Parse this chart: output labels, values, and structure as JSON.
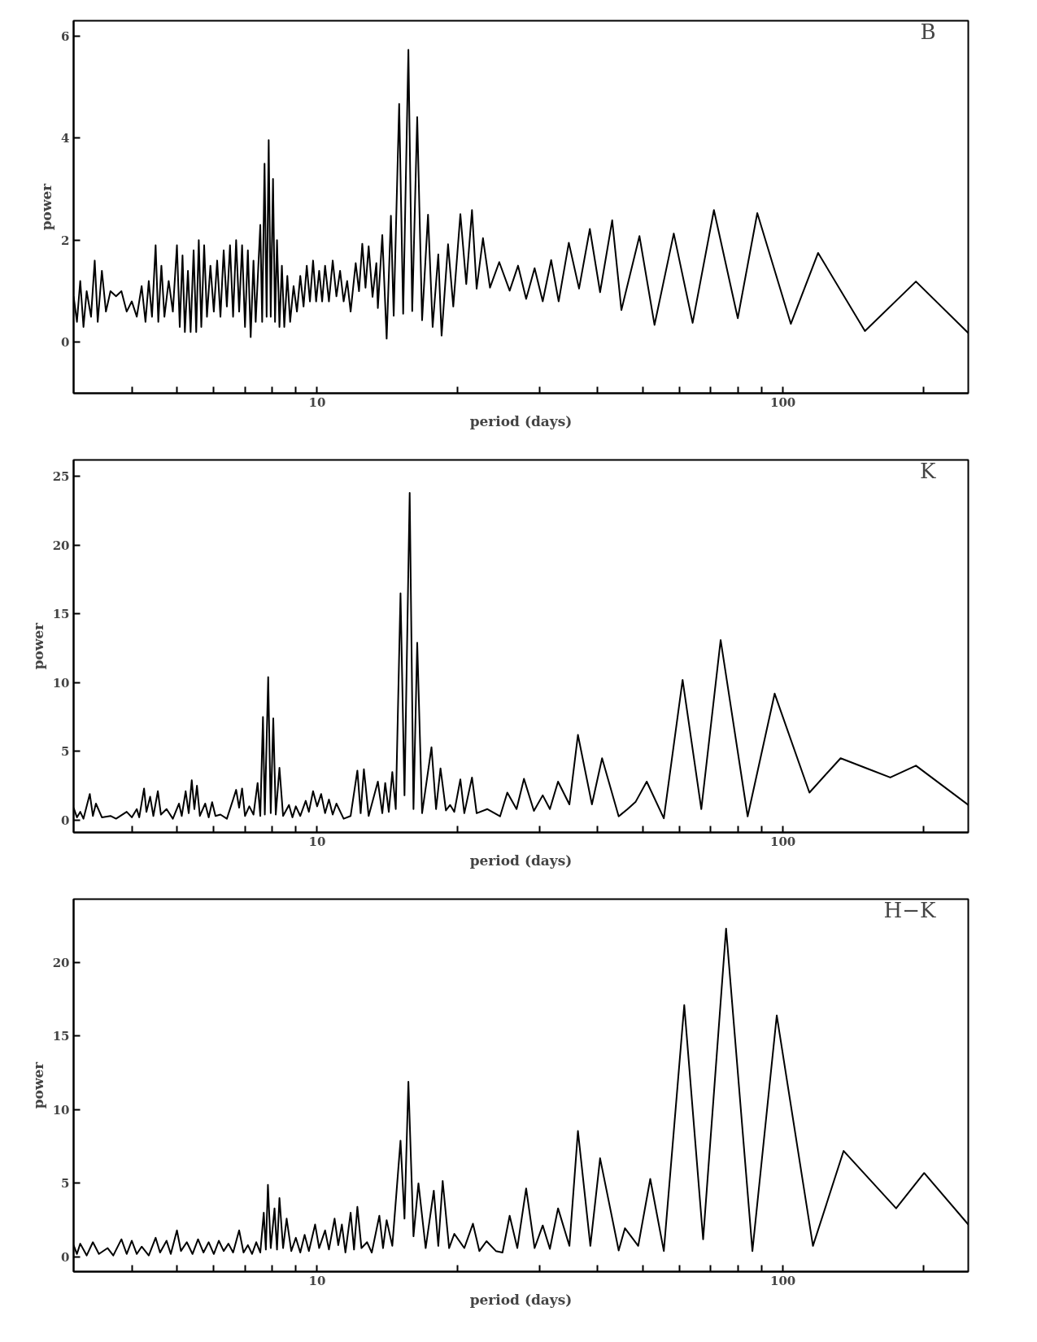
{
  "chart_data": [
    {
      "type": "line",
      "color": "#000000",
      "xlabel": "period (days)",
      "ylabel": "power",
      "annotations": [
        "B"
      ],
      "log": "x",
      "xlim": [
        3,
        250
      ],
      "ylim": [
        -1,
        6.3
      ],
      "yticks": [
        0,
        2,
        4,
        6
      ],
      "xticks": [
        {
          "value": 4,
          "label": null
        },
        {
          "value": 5,
          "label": null
        },
        {
          "value": 6,
          "label": null
        },
        {
          "value": 7,
          "label": null
        },
        {
          "value": 8,
          "label": null
        },
        {
          "value": 9,
          "label": null
        },
        10,
        {
          "value": 20,
          "label": null
        },
        {
          "value": 30,
          "label": null
        },
        {
          "value": 40,
          "label": null
        },
        {
          "value": 50,
          "label": null
        },
        {
          "value": 60,
          "label": null
        },
        {
          "value": 70,
          "label": null
        },
        {
          "value": 80,
          "label": null
        },
        {
          "value": 90,
          "label": null
        },
        100,
        {
          "value": 200,
          "label": null
        }
      ],
      "x": [
        3.0,
        3.05,
        3.1,
        3.15,
        3.2,
        3.27,
        3.33,
        3.38,
        3.45,
        3.52,
        3.6,
        3.7,
        3.8,
        3.9,
        4.0,
        4.1,
        4.2,
        4.28,
        4.35,
        4.42,
        4.5,
        4.56,
        4.63,
        4.7,
        4.8,
        4.9,
        5.0,
        5.07,
        5.14,
        5.2,
        5.28,
        5.35,
        5.43,
        5.5,
        5.57,
        5.64,
        5.72,
        5.8,
        5.9,
        6.0,
        6.1,
        6.2,
        6.3,
        6.4,
        6.5,
        6.6,
        6.7,
        6.8,
        6.9,
        7.0,
        7.1,
        7.2,
        7.3,
        7.38,
        7.55,
        7.62,
        7.71,
        7.79,
        7.87,
        7.95,
        8.04,
        8.12,
        8.2,
        8.3,
        8.4,
        8.5,
        8.63,
        8.75,
        8.9,
        9.05,
        9.2,
        9.35,
        9.5,
        9.65,
        9.8,
        9.95,
        10.1,
        10.25,
        10.4,
        10.6,
        10.8,
        11.0,
        11.2,
        11.4,
        11.6,
        11.8,
        12.1,
        12.3,
        12.5,
        12.7,
        12.9,
        13.15,
        13.4,
        13.5,
        13.8,
        14.1,
        14.4,
        14.6,
        15.0,
        15.3,
        15.7,
        16.0,
        16.4,
        16.8,
        17.3,
        17.7,
        18.2,
        18.5,
        19.1,
        19.6,
        20.3,
        20.9,
        21.5,
        22.0,
        22.7,
        23.5,
        24.6,
        25.9,
        27.0,
        28.1,
        29.3,
        30.5,
        31.8,
        33.0,
        34.7,
        36.5,
        38.5,
        40.5,
        43.0,
        45,
        49.2,
        53,
        58.3,
        64,
        71.1,
        80,
        88.1,
        104,
        119,
        150,
        193,
        250
      ],
      "values": [
        0.9,
        0.4,
        1.2,
        0.3,
        1.0,
        0.5,
        1.6,
        0.4,
        1.4,
        0.6,
        1.0,
        0.9,
        1.0,
        0.6,
        0.8,
        0.5,
        1.1,
        0.4,
        1.2,
        0.5,
        1.9,
        0.4,
        1.5,
        0.5,
        1.2,
        0.6,
        1.9,
        0.3,
        1.7,
        0.2,
        1.4,
        0.2,
        1.8,
        0.2,
        2.0,
        0.3,
        1.9,
        0.5,
        1.5,
        0.6,
        1.6,
        0.5,
        1.8,
        0.7,
        1.9,
        0.5,
        2.0,
        0.6,
        1.9,
        0.3,
        1.8,
        0.1,
        1.6,
        0.4,
        2.3,
        0.4,
        3.5,
        0.5,
        3.96,
        0.5,
        3.2,
        0.4,
        2.0,
        0.3,
        1.5,
        0.3,
        1.3,
        0.4,
        1.1,
        0.6,
        1.3,
        0.7,
        1.5,
        0.8,
        1.6,
        0.8,
        1.4,
        0.8,
        1.5,
        0.8,
        1.6,
        0.9,
        1.4,
        0.8,
        1.2,
        0.6,
        1.55,
        1.0,
        1.93,
        1.07,
        1.88,
        0.89,
        1.55,
        0.67,
        2.1,
        0.07,
        2.48,
        0.52,
        4.67,
        0.56,
        5.73,
        0.61,
        4.41,
        0.43,
        2.5,
        0.3,
        1.72,
        0.13,
        1.92,
        0.7,
        2.51,
        1.14,
        2.59,
        1.05,
        2.04,
        1.07,
        1.57,
        1.01,
        1.5,
        0.85,
        1.45,
        0.8,
        1.61,
        0.8,
        1.95,
        1.05,
        2.22,
        0.98,
        2.39,
        0.63,
        2.08,
        0.34,
        2.13,
        0.38,
        2.59,
        0.47,
        2.53,
        0.36,
        1.75,
        0.22,
        1.19,
        0.18
      ]
    },
    {
      "type": "line",
      "color": "#000000",
      "xlabel": "period (days)",
      "ylabel": "power",
      "annotations": [
        "K"
      ],
      "log": "x",
      "xlim": [
        3,
        250
      ],
      "ylim": [
        -0.9,
        26.2
      ],
      "yticks": [
        0,
        5,
        10,
        15,
        20,
        25
      ],
      "xticks": [
        {
          "value": 4,
          "label": null
        },
        {
          "value": 5,
          "label": null
        },
        {
          "value": 6,
          "label": null
        },
        {
          "value": 7,
          "label": null
        },
        {
          "value": 8,
          "label": null
        },
        {
          "value": 9,
          "label": null
        },
        10,
        {
          "value": 20,
          "label": null
        },
        {
          "value": 30,
          "label": null
        },
        {
          "value": 40,
          "label": null
        },
        {
          "value": 50,
          "label": null
        },
        {
          "value": 60,
          "label": null
        },
        {
          "value": 70,
          "label": null
        },
        {
          "value": 80,
          "label": null
        },
        {
          "value": 90,
          "label": null
        },
        100,
        {
          "value": 200,
          "label": null
        }
      ],
      "x": [
        3.0,
        3.05,
        3.1,
        3.15,
        3.25,
        3.3,
        3.35,
        3.45,
        3.6,
        3.7,
        3.9,
        4.0,
        4.1,
        4.15,
        4.25,
        4.3,
        4.38,
        4.45,
        4.55,
        4.62,
        4.75,
        4.9,
        5.05,
        5.12,
        5.22,
        5.3,
        5.38,
        5.45,
        5.52,
        5.6,
        5.75,
        5.85,
        5.95,
        6.05,
        6.2,
        6.4,
        6.6,
        6.7,
        6.8,
        6.9,
        7.0,
        7.15,
        7.3,
        7.45,
        7.55,
        7.65,
        7.72,
        7.85,
        7.95,
        8.05,
        8.15,
        8.3,
        8.45,
        8.7,
        8.85,
        9.0,
        9.2,
        9.45,
        9.6,
        9.8,
        10.0,
        10.2,
        10.4,
        10.6,
        10.8,
        11.0,
        11.4,
        11.8,
        12.2,
        12.4,
        12.6,
        12.9,
        13.5,
        13.8,
        14.0,
        14.25,
        14.5,
        14.75,
        15.1,
        15.4,
        15.8,
        16.1,
        16.4,
        16.8,
        17.6,
        18.0,
        18.4,
        18.9,
        19.3,
        19.7,
        20.3,
        20.7,
        21.5,
        22.0,
        23.2,
        24.7,
        25.6,
        26.8,
        27.8,
        29.2,
        30.5,
        31.6,
        32.9,
        34.8,
        36.3,
        38.9,
        40.9,
        44.4,
        46.4,
        48.3,
        51,
        55.5,
        60.9,
        66.8,
        73.5,
        84,
        96,
        114,
        133,
        153,
        170,
        193,
        250
      ],
      "values": [
        0.9,
        0.2,
        0.6,
        0.1,
        1.9,
        0.3,
        1.2,
        0.2,
        0.3,
        0.1,
        0.6,
        0.2,
        0.8,
        0.2,
        2.3,
        0.6,
        1.7,
        0.3,
        2.1,
        0.4,
        0.8,
        0.1,
        1.2,
        0.3,
        2.1,
        0.5,
        2.9,
        0.8,
        2.5,
        0.3,
        1.2,
        0.2,
        1.3,
        0.3,
        0.4,
        0.1,
        1.5,
        2.2,
        0.9,
        2.3,
        0.3,
        1.0,
        0.4,
        2.7,
        0.3,
        7.5,
        0.4,
        10.4,
        0.5,
        7.4,
        0.4,
        3.8,
        0.3,
        1.1,
        0.2,
        1.0,
        0.3,
        1.4,
        0.6,
        2.1,
        1.0,
        1.9,
        0.5,
        1.5,
        0.4,
        1.2,
        0.1,
        0.3,
        3.6,
        0.5,
        3.7,
        0.3,
        2.8,
        0.5,
        2.7,
        0.6,
        3.5,
        0.8,
        16.5,
        1.8,
        23.8,
        0.8,
        12.9,
        0.5,
        5.3,
        0.8,
        3.76,
        0.7,
        1.1,
        0.6,
        2.96,
        0.5,
        3.1,
        0.5,
        0.8,
        0.27,
        2.0,
        0.8,
        3.0,
        0.67,
        1.8,
        0.8,
        2.8,
        1.14,
        6.2,
        1.14,
        4.5,
        0.27,
        0.8,
        1.34,
        2.8,
        0.13,
        10.2,
        0.8,
        13.1,
        0.27,
        9.2,
        2.0,
        4.5,
        3.7,
        3.1,
        3.96,
        1.1
      ]
    },
    {
      "type": "line",
      "color": "#000000",
      "xlabel": "period (days)",
      "ylabel": "power",
      "annotations": [
        "H−K"
      ],
      "log": "x",
      "xlim": [
        3,
        250
      ],
      "ylim": [
        -1.0,
        24.3
      ],
      "yticks": [
        0,
        5,
        10,
        15,
        20
      ],
      "xticks": [
        {
          "value": 4,
          "label": null
        },
        {
          "value": 5,
          "label": null
        },
        {
          "value": 6,
          "label": null
        },
        {
          "value": 7,
          "label": null
        },
        {
          "value": 8,
          "label": null
        },
        {
          "value": 9,
          "label": null
        },
        10,
        {
          "value": 20,
          "label": null
        },
        {
          "value": 30,
          "label": null
        },
        {
          "value": 40,
          "label": null
        },
        {
          "value": 50,
          "label": null
        },
        {
          "value": 60,
          "label": null
        },
        {
          "value": 70,
          "label": null
        },
        {
          "value": 80,
          "label": null
        },
        {
          "value": 90,
          "label": null
        },
        100,
        {
          "value": 200,
          "label": null
        }
      ],
      "x": [
        3.0,
        3.05,
        3.1,
        3.2,
        3.3,
        3.4,
        3.55,
        3.65,
        3.8,
        3.9,
        4.0,
        4.1,
        4.2,
        4.35,
        4.5,
        4.6,
        4.75,
        4.85,
        5.0,
        5.1,
        5.25,
        5.4,
        5.55,
        5.7,
        5.85,
        6.0,
        6.15,
        6.3,
        6.45,
        6.6,
        6.8,
        6.95,
        7.1,
        7.25,
        7.4,
        7.55,
        7.68,
        7.76,
        7.84,
        7.95,
        8.1,
        8.2,
        8.3,
        8.45,
        8.6,
        8.8,
        9.0,
        9.2,
        9.4,
        9.6,
        9.9,
        10.1,
        10.4,
        10.6,
        10.9,
        11.1,
        11.3,
        11.5,
        11.8,
        12.0,
        12.2,
        12.45,
        12.8,
        13.1,
        13.6,
        13.85,
        14.1,
        14.5,
        15.1,
        15.4,
        15.7,
        16.1,
        16.5,
        17.1,
        17.8,
        18.2,
        18.6,
        19.2,
        19.7,
        20.7,
        21.6,
        22.3,
        23.1,
        24.2,
        25.0,
        25.9,
        26.9,
        28.1,
        29.3,
        30.5,
        31.6,
        32.9,
        34.8,
        36.3,
        38.6,
        40.5,
        44.4,
        45.8,
        48.9,
        51.9,
        55.5,
        61.4,
        67.4,
        75.5,
        86,
        97,
        116,
        135,
        175,
        201,
        250
      ],
      "values": [
        0.8,
        0.2,
        0.9,
        0.1,
        1.0,
        0.2,
        0.6,
        0.1,
        1.2,
        0.2,
        1.1,
        0.2,
        0.7,
        0.1,
        1.3,
        0.3,
        1.1,
        0.2,
        1.8,
        0.4,
        1.0,
        0.2,
        1.2,
        0.3,
        1.0,
        0.2,
        1.1,
        0.4,
        0.9,
        0.3,
        1.8,
        0.3,
        0.8,
        0.2,
        1.0,
        0.3,
        3.0,
        0.5,
        4.9,
        0.6,
        3.3,
        0.5,
        4.0,
        0.6,
        2.6,
        0.4,
        1.3,
        0.3,
        1.5,
        0.4,
        2.2,
        0.6,
        1.8,
        0.5,
        2.6,
        0.8,
        2.2,
        0.3,
        3.0,
        0.5,
        3.4,
        0.6,
        1.0,
        0.3,
        2.8,
        0.6,
        2.5,
        0.75,
        7.9,
        2.6,
        11.9,
        1.4,
        5.0,
        0.6,
        4.5,
        0.75,
        5.16,
        0.6,
        1.57,
        0.6,
        2.26,
        0.4,
        1.07,
        0.4,
        0.3,
        2.8,
        0.6,
        4.65,
        0.6,
        2.14,
        0.55,
        3.3,
        0.75,
        8.55,
        0.75,
        6.7,
        0.44,
        1.95,
        0.75,
        5.3,
        0.4,
        17.1,
        1.2,
        22.3,
        0.4,
        16.4,
        0.75,
        7.2,
        3.3,
        5.7,
        2.2
      ]
    }
  ]
}
